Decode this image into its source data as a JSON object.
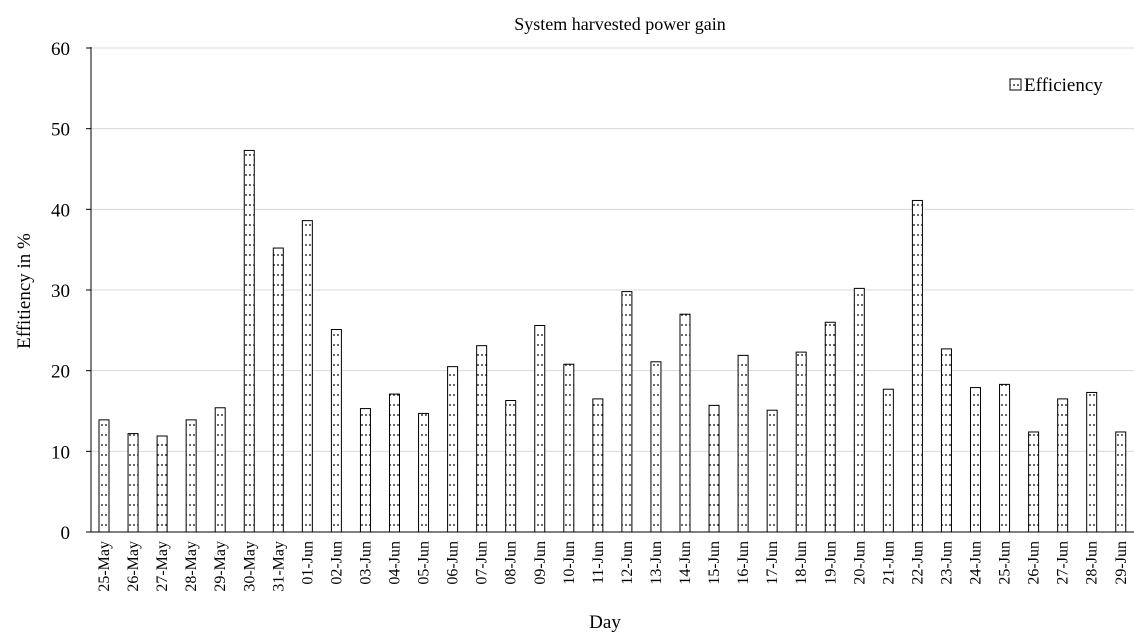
{
  "chart_data": {
    "type": "bar",
    "title": "System harvested power gain",
    "xlabel": "Day",
    "ylabel": "Effitiency in %",
    "ylim": [
      0,
      60
    ],
    "yticks": [
      0,
      10,
      20,
      30,
      40,
      50,
      60
    ],
    "grid": true,
    "legend_position": "top-right",
    "categories": [
      "25-May",
      "26-May",
      "27-May",
      "28-May",
      "29-May",
      "30-May",
      "31-May",
      "01-Jun",
      "02-Jun",
      "03-Jun",
      "04-Jun",
      "05-Jun",
      "06-Jun",
      "07-Jun",
      "08-Jun",
      "09-Jun",
      "10-Jun",
      "11-Jun",
      "12-Jun",
      "13-Jun",
      "14-Jun",
      "15-Jun",
      "16-Jun",
      "17-Jun",
      "18-Jun",
      "19-Jun",
      "20-Jun",
      "21-Jun",
      "22-Jun",
      "23-Jun",
      "24-Jun",
      "25-Jun",
      "26-Jun",
      "27-Jun",
      "28-Jun",
      "29-Jun"
    ],
    "series": [
      {
        "name": "Efficiency",
        "values": [
          13.9,
          12.2,
          11.9,
          13.9,
          15.4,
          47.3,
          35.2,
          38.6,
          25.1,
          15.3,
          17.1,
          14.7,
          20.5,
          23.1,
          16.3,
          25.6,
          20.8,
          16.5,
          29.8,
          21.1,
          27.0,
          15.7,
          21.9,
          15.1,
          22.3,
          26.0,
          30.2,
          17.7,
          41.1,
          22.7,
          17.9,
          18.3,
          12.4,
          16.5,
          17.3,
          12.4
        ]
      }
    ]
  },
  "colors": {
    "bar_fill": "#ffffff",
    "bar_stroke": "#000000",
    "grid": "#d9d9d9",
    "axis": "#000000"
  }
}
